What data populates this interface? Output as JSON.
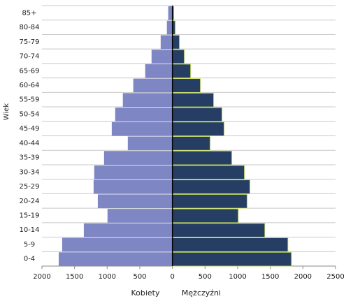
{
  "chart_data": {
    "type": "pyramid",
    "ylabel": "Wiek",
    "categories": [
      "85+",
      "80-84",
      "75-79",
      "70-74",
      "65-69",
      "60-64",
      "55-59",
      "50-54",
      "45-49",
      "40-44",
      "35-39",
      "30-34",
      "25-29",
      "20-24",
      "15-19",
      "10-14",
      "5-9",
      "0-4"
    ],
    "series": [
      {
        "name": "Kobiety",
        "color": "#7f86c4",
        "side": "left",
        "values": [
          64,
          85,
          180,
          320,
          417,
          600,
          760,
          877,
          930,
          684,
          1048,
          1198,
          1208,
          1144,
          995,
          1358,
          1690,
          1743
        ]
      },
      {
        "name": "Mężczyźni",
        "color": "#263e63",
        "side": "right",
        "values": [
          21,
          43,
          107,
          182,
          278,
          428,
          631,
          760,
          792,
          578,
          910,
          1103,
          1188,
          1145,
          1009,
          1416,
          1770,
          1824
        ]
      }
    ],
    "xlim": [
      -2000,
      2500
    ],
    "xticks": [
      {
        "value": -2000,
        "label": "2000"
      },
      {
        "value": -1500,
        "label": "1500"
      },
      {
        "value": -1000,
        "label": "1000"
      },
      {
        "value": -500,
        "label": "500"
      },
      0,
      500,
      1000,
      1500,
      2000,
      2500
    ],
    "grid": true
  }
}
